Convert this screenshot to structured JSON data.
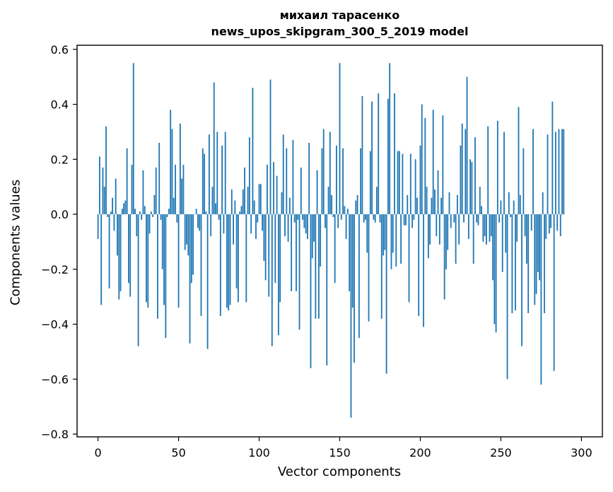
{
  "chart_data": {
    "type": "bar",
    "title_line1": "михаил тарасенко",
    "title_line2": "news_upos_skipgram_300_5_2019 model",
    "xlabel": "Vector components",
    "ylabel": "Components values",
    "xlim": [
      -13,
      313
    ],
    "ylim": [
      -0.81,
      0.615
    ],
    "xticks": [
      0,
      50,
      100,
      150,
      200,
      250,
      300
    ],
    "xtick_labels": [
      "0",
      "50",
      "100",
      "150",
      "200",
      "250",
      "300"
    ],
    "yticks": [
      -0.8,
      -0.6,
      -0.4,
      -0.2,
      0.0,
      0.2,
      0.4,
      0.6
    ],
    "ytick_labels": [
      "−0.8",
      "−0.6",
      "−0.4",
      "−0.2",
      "0.0",
      "0.2",
      "0.4",
      "0.6"
    ],
    "bar_color": "#1f77b4",
    "grid": false,
    "values": [
      -0.09,
      0.21,
      -0.33,
      0.17,
      0.1,
      0.32,
      -0.01,
      -0.27,
      0.01,
      0.06,
      -0.06,
      0.13,
      -0.15,
      -0.31,
      -0.28,
      0.02,
      0.04,
      0.05,
      0.24,
      -0.25,
      -0.3,
      0.18,
      0.55,
      0.02,
      -0.08,
      -0.48,
      0.01,
      -0.02,
      0.16,
      0.03,
      -0.32,
      -0.34,
      -0.07,
      0.01,
      -0.01,
      0.07,
      0.17,
      -0.38,
      0.26,
      -0.02,
      -0.2,
      -0.33,
      -0.45,
      -0.01,
      0.02,
      0.38,
      0.31,
      0.06,
      0.18,
      -0.03,
      -0.34,
      0.33,
      0.13,
      0.18,
      -0.13,
      -0.11,
      -0.15,
      -0.47,
      -0.25,
      -0.22,
      0.0,
      0.02,
      -0.05,
      -0.06,
      -0.37,
      0.24,
      0.22,
      0.01,
      -0.49,
      0.29,
      -0.08,
      0.1,
      0.48,
      0.04,
      0.3,
      -0.02,
      -0.37,
      0.25,
      -0.07,
      0.3,
      -0.34,
      -0.35,
      -0.33,
      0.09,
      -0.11,
      0.05,
      -0.27,
      -0.32,
      0.01,
      0.03,
      0.09,
      0.17,
      -0.32,
      0.1,
      0.28,
      -0.07,
      0.46,
      0.05,
      -0.09,
      -0.03,
      0.11,
      0.11,
      -0.06,
      -0.17,
      -0.24,
      0.18,
      -0.3,
      0.49,
      -0.48,
      0.19,
      -0.25,
      0.14,
      -0.44,
      -0.32,
      0.08,
      0.29,
      -0.08,
      0.24,
      -0.1,
      0.06,
      -0.28,
      0.27,
      -0.03,
      -0.28,
      -0.02,
      -0.42,
      0.17,
      -0.02,
      -0.05,
      -0.07,
      -0.09,
      0.26,
      -0.56,
      -0.16,
      -0.1,
      -0.38,
      0.16,
      -0.38,
      -0.19,
      0.24,
      0.31,
      -0.05,
      -0.55,
      0.1,
      0.3,
      0.07,
      -0.01,
      -0.25,
      0.25,
      -0.05,
      0.55,
      -0.02,
      0.24,
      0.03,
      -0.09,
      0.02,
      -0.28,
      -0.74,
      -0.34,
      -0.54,
      0.05,
      0.07,
      -0.45,
      0.24,
      0.43,
      -0.03,
      -0.02,
      -0.14,
      -0.39,
      0.23,
      0.41,
      -0.02,
      -0.03,
      0.1,
      0.44,
      -0.03,
      -0.38,
      -0.15,
      -0.13,
      -0.58,
      0.42,
      0.55,
      -0.2,
      -0.14,
      0.44,
      -0.19,
      0.23,
      0.23,
      -0.18,
      0.22,
      -0.04,
      -0.04,
      0.07,
      -0.32,
      0.22,
      -0.05,
      -0.02,
      0.2,
      0.06,
      -0.37,
      0.25,
      0.4,
      -0.41,
      0.35,
      0.1,
      -0.16,
      -0.11,
      0.06,
      0.38,
      0.09,
      -0.08,
      0.16,
      -0.11,
      0.06,
      0.36,
      -0.31,
      -0.2,
      -0.13,
      0.08,
      -0.05,
      0.0,
      -0.03,
      -0.18,
      0.07,
      -0.11,
      0.25,
      0.33,
      -0.03,
      0.31,
      0.5,
      -0.09,
      0.2,
      0.19,
      -0.18,
      0.28,
      -0.03,
      -0.04,
      0.1,
      0.03,
      -0.1,
      -0.08,
      -0.11,
      0.32,
      -0.1,
      -0.08,
      -0.24,
      -0.4,
      -0.43,
      0.34,
      -0.03,
      0.05,
      -0.21,
      0.3,
      -0.14,
      -0.6,
      0.08,
      -0.01,
      -0.36,
      0.05,
      -0.35,
      -0.1,
      0.39,
      0.07,
      -0.48,
      0.24,
      -0.08,
      -0.18,
      -0.36,
      0.0,
      -0.06,
      0.31,
      -0.33,
      -0.29,
      -0.21,
      -0.24,
      -0.62,
      0.08,
      -0.36,
      -0.09,
      0.29,
      -0.07,
      -0.05,
      0.41,
      -0.57,
      0.3,
      -0.06,
      0.31,
      -0.08,
      0.31,
      0.31
    ]
  }
}
